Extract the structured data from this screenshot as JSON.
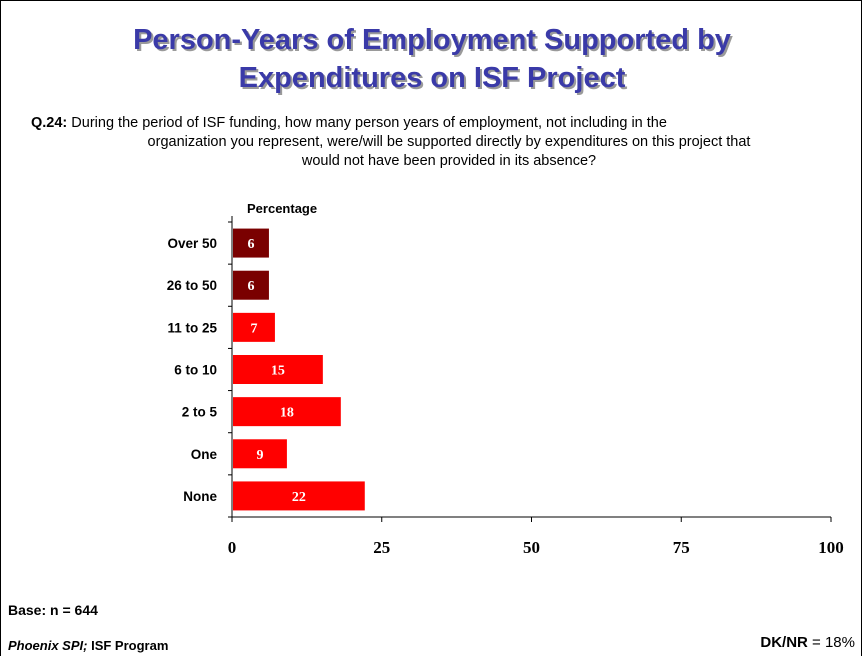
{
  "title_line1": "Person-Years of Employment Supported by",
  "title_line2": "Expenditures on ISF Project",
  "question": {
    "label": "Q.24:",
    "line1": "During the period of ISF funding, how many person years of employment, not including in the",
    "line2": "organization you represent, were/will be supported directly by expenditures on this project that",
    "line3": "would not have been provided in its absence?"
  },
  "base": "Base: n = 644",
  "footer": {
    "brand": "Phoenix SPI;",
    "program": " ISF Program",
    "dknr_label": "DK/NR",
    "dknr_value": " = 18%"
  },
  "colors": {
    "title": "#3a3aa8",
    "bar_dark": "#7a0000",
    "bar_bright": "#ff0000",
    "bar_label": "#ffffff"
  },
  "chart_data": {
    "type": "bar",
    "orientation": "horizontal",
    "title": "Percentage",
    "categories": [
      "Over 50",
      "26 to 50",
      "11 to 25",
      "6 to 10",
      "2 to 5",
      "One",
      "None"
    ],
    "values": [
      6,
      6,
      7,
      15,
      18,
      9,
      22
    ],
    "bar_colors": [
      "#7a0000",
      "#7a0000",
      "#ff0000",
      "#ff0000",
      "#ff0000",
      "#ff0000",
      "#ff0000"
    ],
    "xlim": [
      0,
      100
    ],
    "xticks": [
      0,
      25,
      50,
      75,
      100
    ],
    "grid": false,
    "legend": "none"
  }
}
